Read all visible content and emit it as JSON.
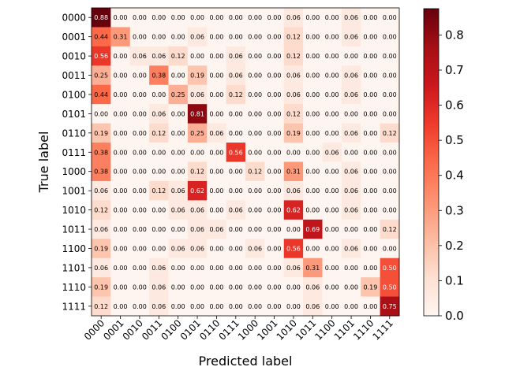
{
  "chart_data": {
    "type": "heatmap",
    "title": "",
    "xlabel": "Predicted label",
    "ylabel": "True label",
    "labels": [
      "0000",
      "0001",
      "0010",
      "0011",
      "0100",
      "0101",
      "0110",
      "0111",
      "1000",
      "1001",
      "1010",
      "1011",
      "1100",
      "1101",
      "1110",
      "1111"
    ],
    "matrix": [
      [
        0.88,
        0.0,
        0.0,
        0.0,
        0.0,
        0.0,
        0.0,
        0.0,
        0.0,
        0.0,
        0.06,
        0.0,
        0.0,
        0.06,
        0.0,
        0.0
      ],
      [
        0.44,
        0.31,
        0.0,
        0.0,
        0.0,
        0.06,
        0.0,
        0.0,
        0.0,
        0.0,
        0.12,
        0.0,
        0.0,
        0.06,
        0.0,
        0.0
      ],
      [
        0.56,
        0.0,
        0.06,
        0.06,
        0.12,
        0.0,
        0.0,
        0.06,
        0.0,
        0.0,
        0.12,
        0.0,
        0.0,
        0.0,
        0.0,
        0.0
      ],
      [
        0.25,
        0.0,
        0.0,
        0.38,
        0.0,
        0.19,
        0.0,
        0.06,
        0.0,
        0.0,
        0.06,
        0.0,
        0.0,
        0.06,
        0.0,
        0.0
      ],
      [
        0.44,
        0.0,
        0.0,
        0.0,
        0.25,
        0.06,
        0.0,
        0.12,
        0.0,
        0.0,
        0.06,
        0.0,
        0.0,
        0.06,
        0.0,
        0.0
      ],
      [
        0.0,
        0.0,
        0.0,
        0.06,
        0.0,
        0.81,
        0.0,
        0.0,
        0.0,
        0.0,
        0.12,
        0.0,
        0.0,
        0.0,
        0.0,
        0.0
      ],
      [
        0.19,
        0.0,
        0.0,
        0.12,
        0.0,
        0.25,
        0.06,
        0.0,
        0.0,
        0.0,
        0.19,
        0.0,
        0.0,
        0.06,
        0.0,
        0.12
      ],
      [
        0.38,
        0.0,
        0.0,
        0.0,
        0.0,
        0.0,
        0.0,
        0.56,
        0.0,
        0.0,
        0.0,
        0.0,
        0.06,
        0.0,
        0.0,
        0.0
      ],
      [
        0.38,
        0.0,
        0.0,
        0.0,
        0.0,
        0.12,
        0.0,
        0.0,
        0.12,
        0.0,
        0.31,
        0.0,
        0.0,
        0.06,
        0.0,
        0.0
      ],
      [
        0.06,
        0.0,
        0.0,
        0.12,
        0.06,
        0.62,
        0.0,
        0.0,
        0.0,
        0.0,
        0.06,
        0.0,
        0.0,
        0.06,
        0.0,
        0.0
      ],
      [
        0.12,
        0.0,
        0.0,
        0.0,
        0.06,
        0.06,
        0.0,
        0.06,
        0.0,
        0.0,
        0.62,
        0.0,
        0.0,
        0.06,
        0.0,
        0.0
      ],
      [
        0.06,
        0.0,
        0.0,
        0.0,
        0.0,
        0.06,
        0.06,
        0.0,
        0.0,
        0.0,
        0.0,
        0.69,
        0.0,
        0.0,
        0.0,
        0.12
      ],
      [
        0.19,
        0.0,
        0.0,
        0.0,
        0.06,
        0.06,
        0.0,
        0.0,
        0.06,
        0.0,
        0.56,
        0.0,
        0.0,
        0.06,
        0.0,
        0.0
      ],
      [
        0.06,
        0.0,
        0.0,
        0.06,
        0.0,
        0.0,
        0.0,
        0.0,
        0.0,
        0.0,
        0.06,
        0.31,
        0.0,
        0.0,
        0.0,
        0.5
      ],
      [
        0.19,
        0.0,
        0.0,
        0.06,
        0.0,
        0.0,
        0.0,
        0.0,
        0.0,
        0.0,
        0.0,
        0.06,
        0.0,
        0.0,
        0.19,
        0.5
      ],
      [
        0.12,
        0.0,
        0.0,
        0.06,
        0.0,
        0.0,
        0.0,
        0.0,
        0.0,
        0.0,
        0.0,
        0.06,
        0.0,
        0.0,
        0.0,
        0.75
      ]
    ],
    "colorbar": {
      "colormap": "Reds",
      "range": [
        0.0,
        0.875
      ],
      "ticks": [
        "0.0",
        "0.1",
        "0.2",
        "0.3",
        "0.4",
        "0.5",
        "0.6",
        "0.7",
        "0.8"
      ]
    },
    "grid": false,
    "legend": "colorbar-right"
  }
}
